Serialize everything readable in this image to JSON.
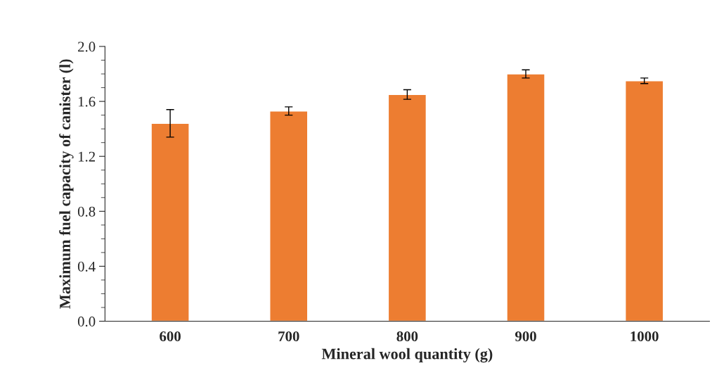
{
  "chart_data": {
    "type": "bar",
    "xlabel": "Mineral wool quantity (g)",
    "ylabel": "Maximum fuel capacity of canister (l)",
    "categories": [
      "600",
      "700",
      "800",
      "900",
      "1000"
    ],
    "values": [
      1.44,
      1.53,
      1.65,
      1.8,
      1.75
    ],
    "errors": [
      0.1,
      0.03,
      0.035,
      0.03,
      0.02
    ],
    "color": "#ed7d31",
    "ylim": [
      0,
      2.0
    ],
    "yticks": [
      {
        "value": 0,
        "label": "0.0"
      },
      {
        "value": 0.4,
        "label": "0.4"
      },
      {
        "value": 0.8,
        "label": "0.8"
      },
      {
        "value": 1.2,
        "label": "1.2"
      },
      {
        "value": 1.6,
        "label": "1.6"
      },
      {
        "value": 2.0,
        "label": "2.0"
      }
    ],
    "grid": false,
    "legend": false
  }
}
